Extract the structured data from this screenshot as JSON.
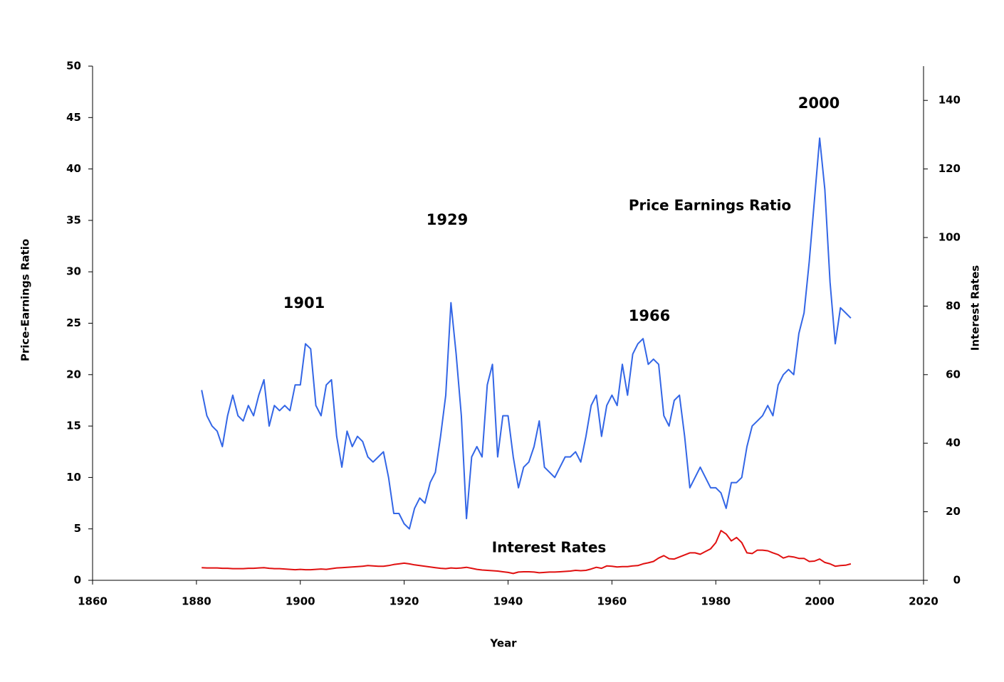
{
  "chart_data": {
    "type": "line",
    "xlabel": "Year",
    "ylabel": "Price-Earnings Ratio",
    "y2label": "Interest Rates",
    "annotations": [
      "1901",
      "1929",
      "1966",
      "2000"
    ],
    "xlim": [
      1860,
      2020
    ],
    "xticks": [
      1860,
      1880,
      1900,
      1920,
      1940,
      1960,
      1980,
      2000,
      2020
    ],
    "ylim": [
      0,
      50
    ],
    "yticks": [
      0,
      5,
      10,
      15,
      20,
      25,
      30,
      35,
      40,
      45,
      50
    ],
    "y2lim": [
      0,
      150
    ],
    "y2ticks": [
      0,
      20,
      40,
      60,
      80,
      100,
      120,
      140
    ],
    "grid": false,
    "x": [
      1881,
      1882,
      1883,
      1884,
      1885,
      1886,
      1887,
      1888,
      1889,
      1890,
      1891,
      1892,
      1893,
      1894,
      1895,
      1896,
      1897,
      1898,
      1899,
      1900,
      1901,
      1902,
      1903,
      1904,
      1905,
      1906,
      1907,
      1908,
      1909,
      1910,
      1911,
      1912,
      1913,
      1914,
      1915,
      1916,
      1917,
      1918,
      1919,
      1920,
      1921,
      1922,
      1923,
      1924,
      1925,
      1926,
      1927,
      1928,
      1929,
      1930,
      1931,
      1932,
      1933,
      1934,
      1935,
      1936,
      1937,
      1938,
      1939,
      1940,
      1941,
      1942,
      1943,
      1944,
      1945,
      1946,
      1947,
      1948,
      1949,
      1950,
      1951,
      1952,
      1953,
      1954,
      1955,
      1956,
      1957,
      1958,
      1959,
      1960,
      1961,
      1962,
      1963,
      1964,
      1965,
      1966,
      1967,
      1968,
      1969,
      1970,
      1971,
      1972,
      1973,
      1974,
      1975,
      1976,
      1977,
      1978,
      1979,
      1980,
      1981,
      1982,
      1983,
      1984,
      1985,
      1986,
      1987,
      1988,
      1989,
      1990,
      1991,
      1992,
      1993,
      1994,
      1995,
      1996,
      1997,
      1998,
      1999,
      2000,
      2001,
      2002,
      2003,
      2004,
      2005,
      2006
    ],
    "series": [
      {
        "name": "Price Earnings Ratio",
        "color": "#3366e6",
        "axis": "y",
        "values": [
          18.5,
          16,
          15,
          14.5,
          13,
          16,
          18,
          16,
          15.5,
          17,
          16,
          18,
          19.5,
          15,
          17,
          16.5,
          17,
          16.5,
          19,
          19,
          23,
          22.5,
          17,
          16,
          19,
          19.5,
          14,
          11,
          14.5,
          13,
          14,
          13.5,
          12,
          11.5,
          12,
          12.5,
          10,
          6.5,
          6.5,
          5.5,
          5,
          7,
          8,
          7.5,
          9.5,
          10.5,
          14,
          18,
          27,
          22,
          16,
          6,
          12,
          13,
          12,
          19,
          21,
          12,
          16,
          16,
          12,
          9,
          11,
          11.5,
          13,
          15.5,
          11,
          10.5,
          10,
          11,
          12,
          12,
          12.5,
          11.5,
          14,
          17,
          18,
          14,
          17,
          18,
          17,
          21,
          18,
          22,
          23,
          23.5,
          21,
          21.5,
          21,
          16,
          15,
          17.5,
          18,
          14,
          9,
          10,
          11,
          10,
          9,
          9,
          8.5,
          7,
          9.5,
          9.5,
          10,
          13,
          15,
          15.5,
          16,
          17,
          16,
          19,
          20,
          20.5,
          20,
          24,
          26,
          31,
          37,
          43,
          38,
          29,
          23,
          26.5,
          26,
          25.5
        ]
      },
      {
        "name": "Interest Rates",
        "color": "#e01010",
        "axis": "y2",
        "values": [
          3.7,
          3.6,
          3.6,
          3.6,
          3.5,
          3.5,
          3.4,
          3.4,
          3.4,
          3.5,
          3.5,
          3.6,
          3.7,
          3.5,
          3.4,
          3.4,
          3.3,
          3.2,
          3.1,
          3.2,
          3.1,
          3.1,
          3.2,
          3.3,
          3.2,
          3.4,
          3.6,
          3.7,
          3.8,
          3.9,
          4.0,
          4.1,
          4.3,
          4.2,
          4.1,
          4.1,
          4.3,
          4.6,
          4.8,
          5.0,
          4.8,
          4.5,
          4.3,
          4.1,
          3.9,
          3.7,
          3.5,
          3.4,
          3.6,
          3.5,
          3.6,
          3.8,
          3.5,
          3.2,
          3.0,
          2.9,
          2.8,
          2.7,
          2.5,
          2.3,
          2.0,
          2.4,
          2.5,
          2.5,
          2.4,
          2.2,
          2.3,
          2.4,
          2.4,
          2.5,
          2.6,
          2.7,
          2.9,
          2.8,
          2.9,
          3.3,
          3.8,
          3.5,
          4.2,
          4.1,
          3.9,
          4.0,
          4.0,
          4.2,
          4.3,
          4.8,
          5.1,
          5.5,
          6.5,
          7.2,
          6.3,
          6.2,
          6.8,
          7.4,
          8.0,
          8.0,
          7.6,
          8.4,
          9.2,
          11.0,
          14.5,
          13.5,
          11.5,
          12.5,
          11.0,
          8.0,
          7.8,
          8.8,
          8.8,
          8.6,
          8.0,
          7.5,
          6.5,
          7.0,
          6.8,
          6.4,
          6.4,
          5.5,
          5.6,
          6.2,
          5.2,
          4.8,
          4.1,
          4.3,
          4.4,
          4.8
        ]
      }
    ]
  }
}
